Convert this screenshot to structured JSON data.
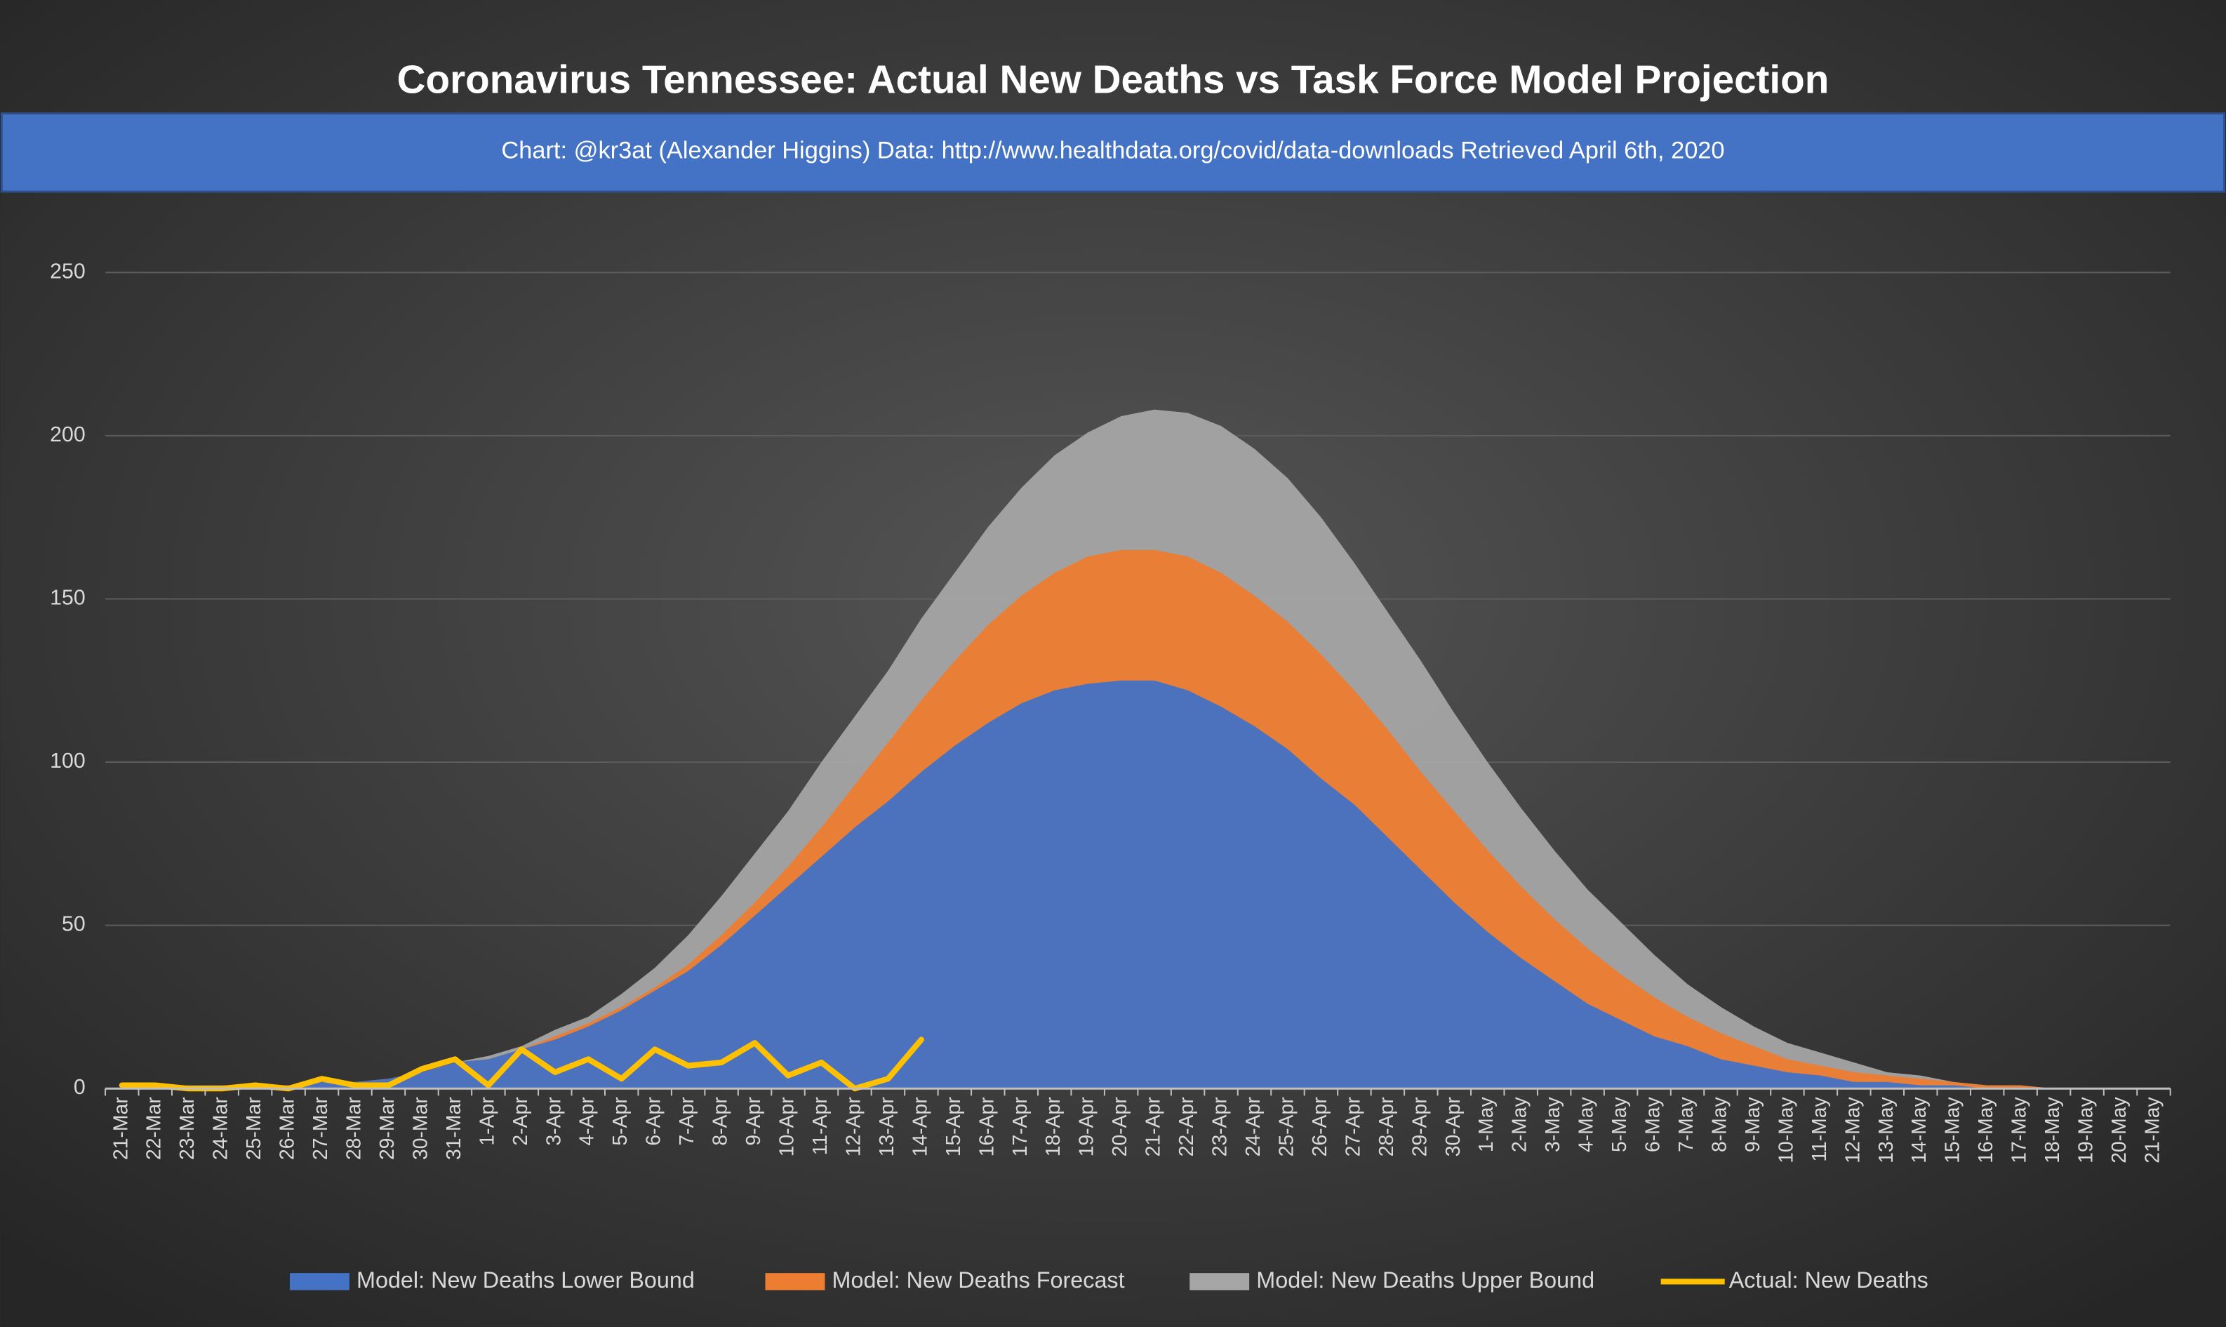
{
  "chart_data": {
    "type": "area",
    "title": "Coronavirus Tennessee: Actual New Deaths vs Task Force Model Projection",
    "subtitle": "Chart: @kr3at (Alexander Higgins)     Data: http://www.healthdata.org/covid/data-downloads Retrieved April 6th, 2020",
    "categories": [
      "21-Mar",
      "22-Mar",
      "23-Mar",
      "24-Mar",
      "25-Mar",
      "26-Mar",
      "27-Mar",
      "28-Mar",
      "29-Mar",
      "30-Mar",
      "31-Mar",
      "1-Apr",
      "2-Apr",
      "3-Apr",
      "4-Apr",
      "5-Apr",
      "6-Apr",
      "7-Apr",
      "8-Apr",
      "9-Apr",
      "10-Apr",
      "11-Apr",
      "12-Apr",
      "13-Apr",
      "14-Apr",
      "15-Apr",
      "16-Apr",
      "17-Apr",
      "18-Apr",
      "19-Apr",
      "20-Apr",
      "21-Apr",
      "22-Apr",
      "23-Apr",
      "24-Apr",
      "25-Apr",
      "26-Apr",
      "27-Apr",
      "28-Apr",
      "29-Apr",
      "30-Apr",
      "1-May",
      "2-May",
      "3-May",
      "4-May",
      "5-May",
      "6-May",
      "7-May",
      "8-May",
      "9-May",
      "10-May",
      "11-May",
      "12-May",
      "13-May",
      "14-May",
      "15-May",
      "16-May",
      "17-May",
      "18-May",
      "19-May",
      "20-May",
      "21-May"
    ],
    "series": [
      {
        "name": "Model: New Deaths Lower Bound",
        "color": "#4472c4",
        "kind": "area",
        "values": [
          0,
          0,
          1,
          1,
          1,
          1,
          2,
          2,
          3,
          5,
          8,
          9,
          12,
          15,
          19,
          24,
          30,
          36,
          44,
          53,
          62,
          71,
          80,
          88,
          97,
          105,
          112,
          118,
          122,
          124,
          125,
          125,
          122,
          117,
          111,
          104,
          95,
          87,
          77,
          67,
          57,
          48,
          40,
          33,
          26,
          21,
          16,
          13,
          9,
          7,
          5,
          4,
          2,
          2,
          1,
          1,
          0,
          0,
          0,
          0,
          0,
          0
        ]
      },
      {
        "name": "Model: New Deaths Forecast",
        "color": "#ed7d31",
        "kind": "area",
        "values": [
          0,
          0,
          1,
          1,
          1,
          1,
          2,
          2,
          3,
          5,
          8,
          9,
          12,
          16,
          20,
          25,
          31,
          38,
          47,
          57,
          68,
          80,
          93,
          106,
          119,
          131,
          142,
          151,
          158,
          163,
          165,
          165,
          163,
          158,
          151,
          143,
          133,
          122,
          110,
          97,
          85,
          73,
          62,
          52,
          43,
          35,
          28,
          22,
          17,
          13,
          9,
          7,
          5,
          4,
          3,
          2,
          1,
          1,
          0,
          0,
          0,
          0
        ]
      },
      {
        "name": "Model: New Deaths Upper Bound",
        "color": "#a5a5a5",
        "kind": "area",
        "values": [
          0,
          0,
          1,
          1,
          1,
          1,
          2,
          2,
          3,
          5,
          8,
          10,
          13,
          18,
          22,
          29,
          37,
          47,
          59,
          72,
          85,
          100,
          114,
          128,
          144,
          158,
          172,
          184,
          194,
          201,
          206,
          208,
          207,
          203,
          196,
          187,
          175,
          161,
          146,
          131,
          115,
          100,
          86,
          73,
          61,
          51,
          41,
          32,
          25,
          19,
          14,
          11,
          8,
          5,
          4,
          2,
          1,
          1,
          0,
          0,
          0,
          0
        ]
      },
      {
        "name": "Actual: New Deaths",
        "color": "#ffc000",
        "kind": "line",
        "values": [
          1,
          1,
          0,
          0,
          1,
          0,
          3,
          1,
          1,
          6,
          9,
          1,
          12,
          5,
          9,
          3,
          12,
          7,
          8,
          14,
          4,
          8,
          0,
          3,
          15,
          null,
          null,
          null,
          null,
          null,
          null,
          null,
          null,
          null,
          null,
          null,
          null,
          null,
          null,
          null,
          null,
          null,
          null,
          null,
          null,
          null,
          null,
          null,
          null,
          null,
          null,
          null,
          null,
          null,
          null,
          null,
          null,
          null,
          null,
          null,
          null,
          null
        ]
      }
    ],
    "ylim": [
      0,
      250
    ],
    "yticks": [
      0,
      50,
      100,
      150,
      200,
      250
    ],
    "grid": true
  }
}
